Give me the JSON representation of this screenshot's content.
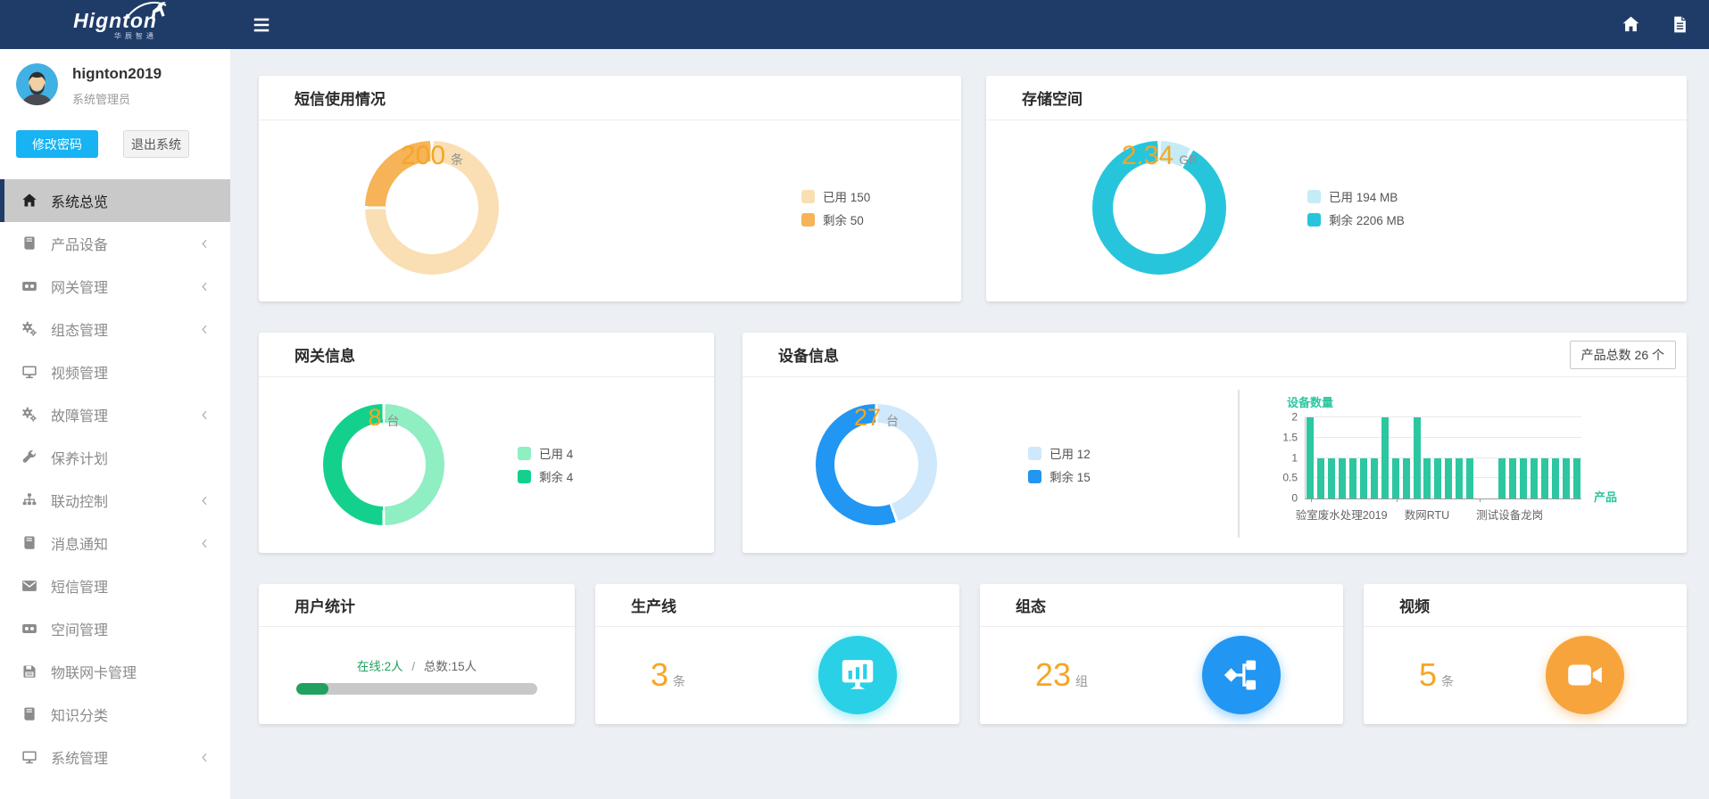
{
  "topbar": {
    "logo": "Hignton",
    "logo_sub": "华辰智通",
    "icons": [
      "antelope-logo-icon",
      "hamburger-icon",
      "home-icon",
      "document-icon"
    ]
  },
  "user": {
    "name": "hignton2019",
    "role": "系统管理员",
    "change_password_label": "修改密码",
    "logout_label": "退出系统"
  },
  "sidebar": {
    "items": [
      {
        "label": "系统总览",
        "icon": "home-icon",
        "active": true,
        "has_children": false
      },
      {
        "label": "产品设备",
        "icon": "book-icon",
        "active": false,
        "has_children": true
      },
      {
        "label": "网关管理",
        "icon": "camera-icon",
        "active": false,
        "has_children": true
      },
      {
        "label": "组态管理",
        "icon": "gears-icon",
        "active": false,
        "has_children": true
      },
      {
        "label": "视频管理",
        "icon": "monitor-icon",
        "active": false,
        "has_children": false
      },
      {
        "label": "故障管理",
        "icon": "gears-icon",
        "active": false,
        "has_children": true
      },
      {
        "label": "保养计划",
        "icon": "wrench-icon",
        "active": false,
        "has_children": false
      },
      {
        "label": "联动控制",
        "icon": "sitemap-icon",
        "active": false,
        "has_children": true
      },
      {
        "label": "消息通知",
        "icon": "book-icon",
        "active": false,
        "has_children": true
      },
      {
        "label": "短信管理",
        "icon": "envelope-icon",
        "active": false,
        "has_children": false
      },
      {
        "label": "空间管理",
        "icon": "camera-icon",
        "active": false,
        "has_children": false
      },
      {
        "label": "物联网卡管理",
        "icon": "floppy-icon",
        "active": false,
        "has_children": false
      },
      {
        "label": "知识分类",
        "icon": "book-icon",
        "active": false,
        "has_children": false
      },
      {
        "label": "系统管理",
        "icon": "monitor-icon",
        "active": false,
        "has_children": true
      }
    ]
  },
  "cards": {
    "sms": {
      "title": "短信使用情况"
    },
    "storage": {
      "title": "存储空间"
    },
    "gateway": {
      "title": "网关信息"
    },
    "device": {
      "title": "设备信息",
      "product_total_badge": "产品总数 26 个"
    },
    "users": {
      "title": "用户统计",
      "online": "在线:2人",
      "separator": "/",
      "total": "总数:15人",
      "percent": 13.3
    },
    "production": {
      "title": "生产线",
      "value": "3",
      "unit": "条",
      "icon": "monitor-chart-icon",
      "icon_color": "#2ad0e6"
    },
    "scada": {
      "title": "组态",
      "value": "23",
      "unit": "组",
      "icon": "share-nodes-icon",
      "icon_color": "#2196f3"
    },
    "video": {
      "title": "视频",
      "value": "5",
      "unit": "条",
      "icon": "video-camera-icon",
      "icon_color": "#f7a43d"
    }
  },
  "chart_data": [
    {
      "type": "pie",
      "title": "短信使用情况",
      "labels": [
        "已用 150",
        "剩余 50"
      ],
      "values": [
        150,
        50
      ],
      "colors": [
        "#f9dfb3",
        "#f6b357"
      ],
      "center_value": "200",
      "center_unit": "条",
      "legend_position": "right"
    },
    {
      "type": "pie",
      "title": "存储空间",
      "labels": [
        "已用 194 MB",
        "剩余 2206 MB"
      ],
      "values": [
        194,
        2206
      ],
      "colors": [
        "#c5ecf6",
        "#27c5dc"
      ],
      "center_value": "2.34",
      "center_unit": "GB",
      "legend_position": "right"
    },
    {
      "type": "pie",
      "title": "网关信息",
      "labels": [
        "已用 4",
        "剩余 4"
      ],
      "values": [
        4,
        4
      ],
      "colors": [
        "#8feec2",
        "#13d18c"
      ],
      "center_value": "8",
      "center_unit": "台",
      "legend_position": "right"
    },
    {
      "type": "pie",
      "title": "设备信息",
      "labels": [
        "已用 12",
        "剩余 15"
      ],
      "values": [
        12,
        15
      ],
      "colors": [
        "#cfe8fb",
        "#2196f3"
      ],
      "center_value": "27",
      "center_unit": "台",
      "legend_position": "right"
    },
    {
      "type": "bar",
      "title": "设备数量",
      "xlabel": "产品",
      "ylabel": "设备数量",
      "ylim": [
        0,
        2
      ],
      "yticks": [
        0,
        0.5,
        1,
        1.5,
        2
      ],
      "grid": true,
      "values": [
        2,
        1,
        1,
        1,
        1,
        1,
        1,
        2,
        1,
        1,
        2,
        1,
        1,
        1,
        1,
        1,
        0,
        0,
        1,
        1,
        1,
        1,
        1,
        1,
        1,
        1
      ],
      "bar_color": "#2cc7a0",
      "xtick_labels": [
        {
          "text": "验室废水处理2019",
          "pos": 13
        },
        {
          "text": "数网RTU",
          "pos": 44
        },
        {
          "text": "测试设备龙岗",
          "pos": 74
        }
      ]
    }
  ]
}
